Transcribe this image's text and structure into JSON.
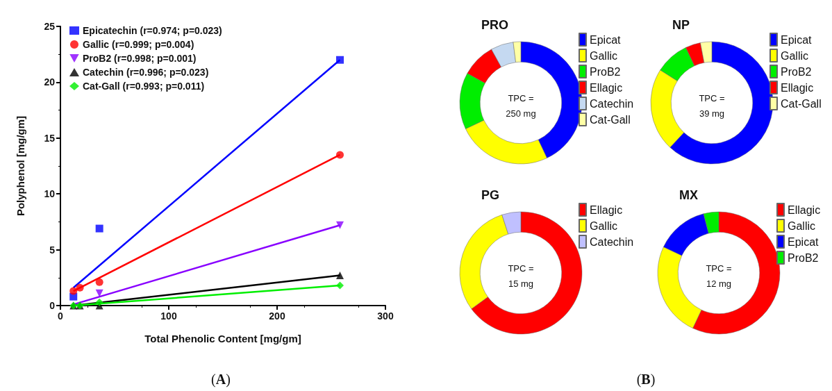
{
  "chart_data": [
    {
      "type": "scatter",
      "xlabel": "Total Phenolic Content [mg/gm]",
      "ylabel": "Polyphenol [mg/gm]",
      "xlim": [
        0,
        300
      ],
      "xticks": [
        0,
        100,
        200,
        300
      ],
      "ylim": [
        0,
        25
      ],
      "yticks": [
        0,
        5,
        10,
        15,
        20,
        25
      ],
      "grid": false,
      "legend": "top left",
      "annotations": [
        "(A)"
      ],
      "series": [
        {
          "name": "Epicatechin (r=0.974; p=0.023)",
          "color": "#0000ff",
          "marker": "square",
          "x": [
            12,
            36,
            258
          ],
          "values": [
            0.8,
            6.9,
            22.0
          ]
        },
        {
          "name": "Gallic (r=0.999; p=0.004)",
          "color": "#ff0000",
          "marker": "circle",
          "x": [
            12,
            18,
            36,
            258
          ],
          "values": [
            1.3,
            1.6,
            2.1,
            13.5
          ]
        },
        {
          "name": "ProB2 (r=0.998; p=0.001)",
          "color": "#8800ff",
          "marker": "triangle-down",
          "x": [
            36,
            258
          ],
          "values": [
            1.1,
            7.2
          ]
        },
        {
          "name": "Catechin (r=0.996; p=0.023)",
          "color": "#000000",
          "marker": "triangle",
          "x": [
            12,
            18,
            36,
            258
          ],
          "values": [
            0,
            0,
            0,
            2.7
          ]
        },
        {
          "name": "Cat-Gall (r=0.993; p=0.011)",
          "color": "#00ee00",
          "marker": "diamond",
          "x": [
            12,
            18,
            36,
            258
          ],
          "values": [
            0,
            0,
            0.3,
            1.8
          ]
        },
        {
          "type": "line",
          "color": "#0000ff",
          "marker": "none",
          "x": [
            12,
            258
          ],
          "values": [
            1.6,
            22.0
          ]
        },
        {
          "type": "line",
          "color": "#ff0000",
          "marker": "none",
          "x": [
            12,
            258
          ],
          "values": [
            1.3,
            13.5
          ]
        },
        {
          "type": "line",
          "color": "#8800ff",
          "marker": "none",
          "x": [
            12,
            258
          ],
          "values": [
            0.1,
            7.2
          ]
        },
        {
          "type": "line",
          "color": "#000000",
          "marker": "none",
          "x": [
            12,
            258
          ],
          "values": [
            0,
            2.7
          ]
        },
        {
          "type": "line",
          "color": "#00ee00",
          "marker": "none",
          "x": [
            12,
            258
          ],
          "values": [
            0,
            1.8
          ]
        }
      ]
    },
    {
      "type": "donut",
      "title": "PRO",
      "categories": [
        "Epicat",
        "Gallic",
        "ProB2",
        "Ellagic",
        "Catechin",
        "Cat-Gall"
      ],
      "values": [
        43,
        25,
        15,
        9,
        6,
        2
      ],
      "colors": [
        "#0000ff",
        "#ffff00",
        "#00ee00",
        "#ff0000",
        "#c5d9f1",
        "#ffffa6"
      ],
      "legend": "right",
      "annotations": [
        "TPC =\n250 mg",
        "(B)"
      ]
    },
    {
      "type": "donut",
      "title": "NP",
      "categories": [
        "Epicat",
        "Gallic",
        "ProB2",
        "Ellagic",
        "Cat-Gall"
      ],
      "values": [
        62,
        22,
        9,
        4,
        3
      ],
      "colors": [
        "#0000ff",
        "#ffff00",
        "#00ee00",
        "#ff0000",
        "#ffffa6"
      ],
      "legend": "right",
      "annotations": [
        "TPC =\n39 mg"
      ]
    },
    {
      "type": "donut",
      "title": "PG",
      "categories": [
        "Ellagic",
        "Gallic",
        "Catechin"
      ],
      "values": [
        65,
        30,
        5
      ],
      "colors": [
        "#ff0000",
        "#ffff00",
        "#c0c0ff"
      ],
      "legend": "right",
      "annotations": [
        "TPC =\n15 mg"
      ]
    },
    {
      "type": "donut",
      "title": "MX",
      "categories": [
        "Ellagic",
        "Gallic",
        "Epicat",
        "ProB2"
      ],
      "values": [
        57,
        25,
        14,
        4
      ],
      "colors": [
        "#ff0000",
        "#ffff00",
        "#0000ff",
        "#00ee00"
      ],
      "legend": "right",
      "annotations": [
        "TPC =\n12 mg"
      ]
    }
  ]
}
